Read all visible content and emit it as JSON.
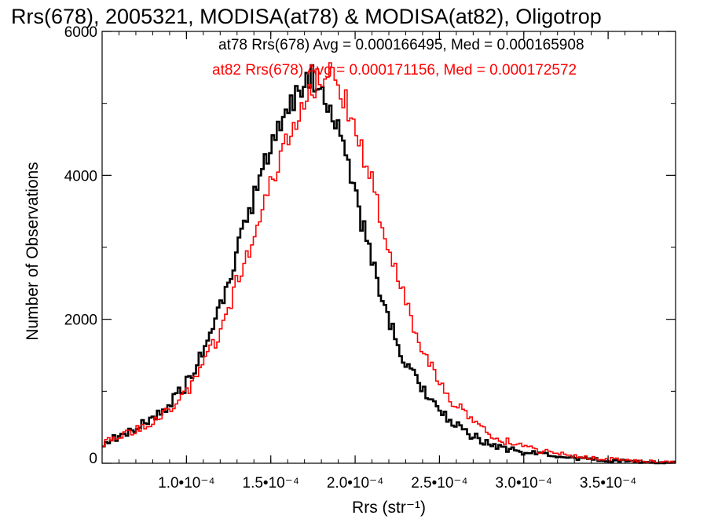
{
  "chart_data": {
    "type": "line",
    "title": "Rrs(678), 2005321, MODISA(at78) & MODISA(at82), Oligotrop",
    "xlabel": "Rrs (str⁻¹)",
    "ylabel": "Number of Observations",
    "xlim": [
      5e-05,
      0.00039
    ],
    "ylim": [
      0,
      6000
    ],
    "x_ticks": [
      0.0001,
      0.00015,
      0.0002,
      0.00025,
      0.0003,
      0.00035
    ],
    "x_tick_labels": [
      "1.0•10⁻⁴",
      "1.5•10⁻⁴",
      "2.0•10⁻⁴",
      "2.5•10⁻⁴",
      "3.0•10⁻⁴",
      "3.5•10⁻⁴"
    ],
    "y_ticks": [
      0,
      2000,
      4000,
      6000
    ],
    "y_tick_labels": [
      "0",
      "2000",
      "4000",
      "6000"
    ],
    "annotations": [
      {
        "text": "at78 Rrs(678) Avg = 0.000166495, Med = 0.000165908",
        "color": "#000000"
      },
      {
        "text": "at82 Rrs(678) Avg = 0.000171156, Med = 0.000172572",
        "color": "#ff0000"
      }
    ],
    "series": [
      {
        "color": "#000000",
        "stroke": "thick",
        "x": [
          5e-05,
          6e-05,
          7e-05,
          8e-05,
          9e-05,
          0.0001,
          0.00011,
          0.00012,
          0.00013,
          0.00014,
          0.00015,
          0.00016,
          0.00017,
          0.000175,
          0.00018,
          0.00019,
          0.0002,
          0.00021,
          0.00022,
          0.00023,
          0.00024,
          0.00025,
          0.00026,
          0.00027,
          0.00028,
          0.00029,
          0.0003,
          0.00032,
          0.00034,
          0.00036,
          0.00038,
          0.00039
        ],
        "y": [
          280,
          370,
          480,
          620,
          820,
          1100,
          1550,
          2150,
          2900,
          3700,
          4400,
          4950,
          5300,
          5350,
          5200,
          4600,
          3700,
          2800,
          2000,
          1400,
          1000,
          720,
          520,
          380,
          270,
          200,
          150,
          90,
          50,
          30,
          15,
          10
        ]
      },
      {
        "color": "#ff0000",
        "stroke": "thin",
        "x": [
          5e-05,
          6e-05,
          7e-05,
          8e-05,
          9e-05,
          0.0001,
          0.00011,
          0.00012,
          0.00013,
          0.00014,
          0.00015,
          0.00016,
          0.00017,
          0.00018,
          0.000185,
          0.00019,
          0.0002,
          0.00021,
          0.00022,
          0.00023,
          0.00024,
          0.00025,
          0.00026,
          0.00027,
          0.00028,
          0.00029,
          0.0003,
          0.00032,
          0.00034,
          0.00036,
          0.00038,
          0.00039
        ],
        "y": [
          280,
          360,
          460,
          590,
          760,
          1000,
          1350,
          1850,
          2500,
          3200,
          3900,
          4500,
          5050,
          5400,
          5450,
          5300,
          4700,
          3900,
          3000,
          2200,
          1550,
          1100,
          800,
          580,
          420,
          300,
          220,
          130,
          75,
          40,
          20,
          10
        ]
      }
    ]
  }
}
